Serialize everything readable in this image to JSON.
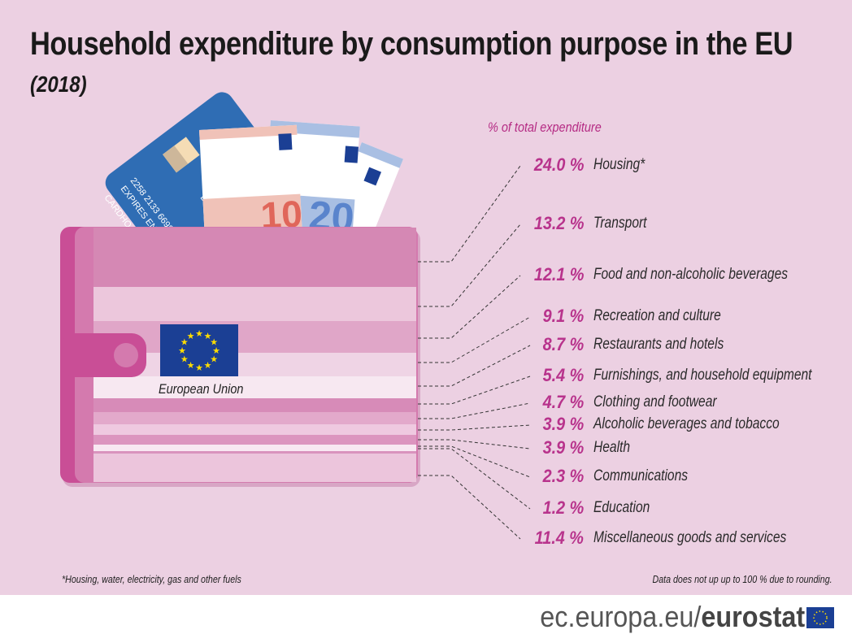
{
  "title": "Household expenditure by consumption purpose in the EU",
  "subtitle": "(2018)",
  "wallet_label": "European Union",
  "card_text": {
    "number": "2258 2133 6698",
    "expires": "EXPIRES END",
    "holder": "CARDHO",
    "bank": "BANK OF"
  },
  "footnote_left": "*Housing, water, electricity, gas and other fuels",
  "footnote_right": "Data does not up up to 100 % due to rounding.",
  "brand": {
    "prefix": "ec.europa.eu/",
    "name": "eurostat"
  },
  "colors": {
    "background": "#ecd0e2",
    "accent": "#b8338c",
    "wallet": "#d588b4",
    "eu_blue": "#1b3f94",
    "eu_star": "#ffdd00"
  },
  "chart_data": {
    "type": "bar",
    "title": "Household expenditure by consumption purpose in the EU",
    "subtitle": "(2018)",
    "ylabel": "% of total expenditure",
    "categories": [
      "Housing*",
      "Transport",
      "Food and non-alcoholic beverages",
      "Recreation and culture",
      "Restaurants and hotels",
      "Furnishings, and household equipment",
      "Clothing and footwear",
      "Alcoholic beverages and tobacco",
      "Health",
      "Communications",
      "Education",
      "Miscellaneous goods and services"
    ],
    "values": [
      24.0,
      13.2,
      12.1,
      9.1,
      8.7,
      5.4,
      4.7,
      3.9,
      3.9,
      2.3,
      1.2,
      11.4
    ],
    "value_labels": [
      "24.0 %",
      "13.2 %",
      "12.1 %",
      "9.1 %",
      "8.7 %",
      "5.4 %",
      "4.7 %",
      "3.9 %",
      "3.9 %",
      "2.3 %",
      "1.2 %",
      "11.4 %"
    ]
  }
}
